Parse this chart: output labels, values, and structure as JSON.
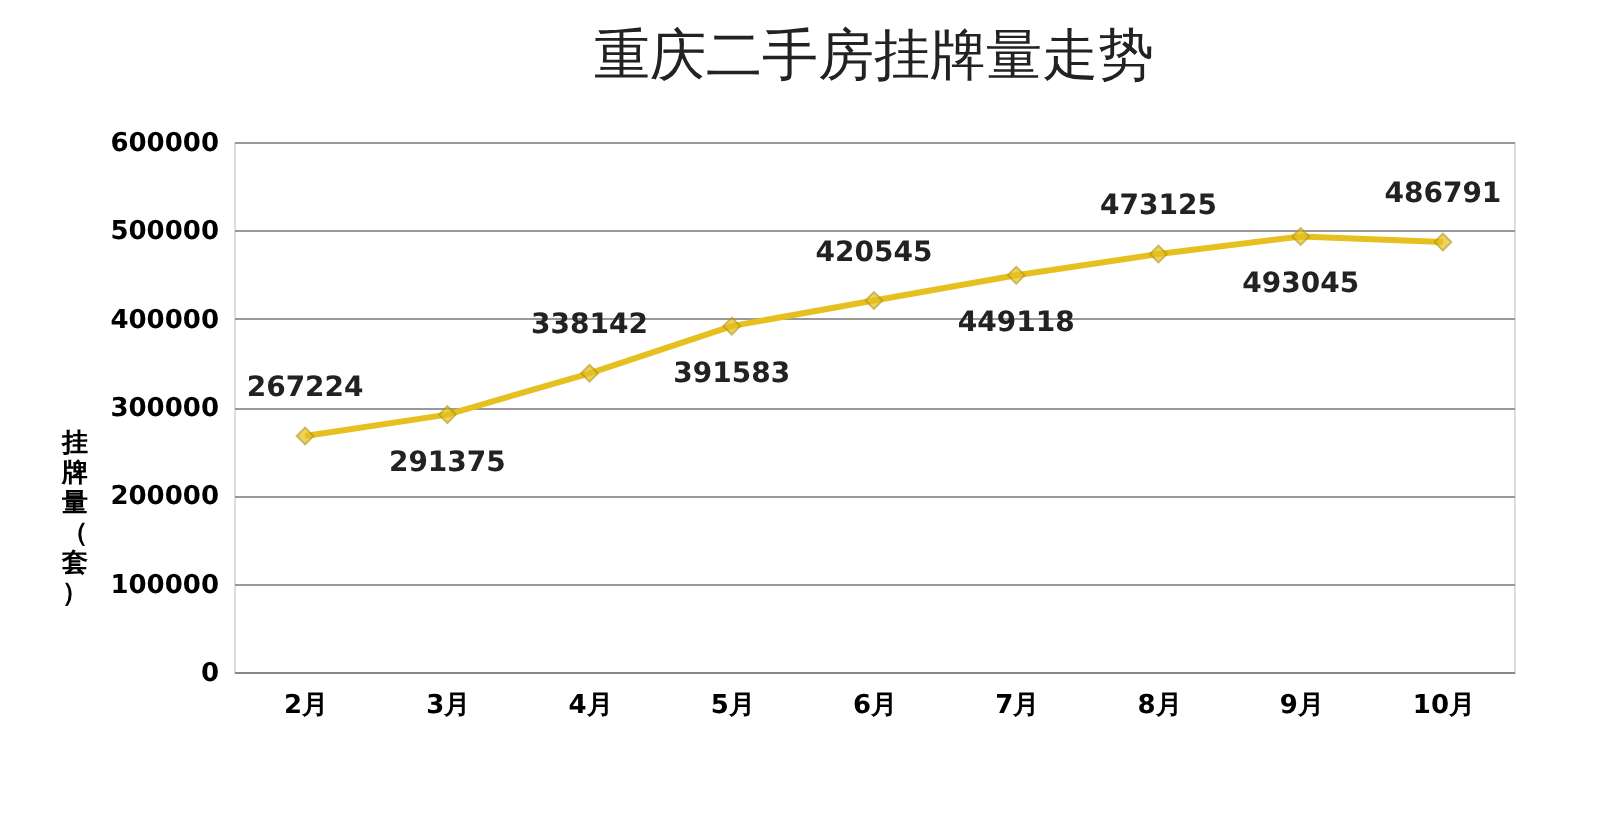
{
  "chart_data": {
    "type": "line",
    "title": "重庆二手房挂牌量走势",
    "ylabel": "挂牌量（套）",
    "categories": [
      "2月",
      "3月",
      "4月",
      "5月",
      "6月",
      "7月",
      "8月",
      "9月",
      "10月"
    ],
    "series": [
      {
        "color": "#e6c01e",
        "values": [
          267224,
          291375,
          338142,
          391583,
          420545,
          449118,
          473125,
          493045,
          486791
        ]
      }
    ],
    "ylim": [
      0,
      600000
    ],
    "yticks": [
      0,
      100000,
      200000,
      300000,
      400000,
      500000,
      600000
    ],
    "grid": "y",
    "data_labels": true,
    "marker": "diamond",
    "line_style": "solid"
  }
}
